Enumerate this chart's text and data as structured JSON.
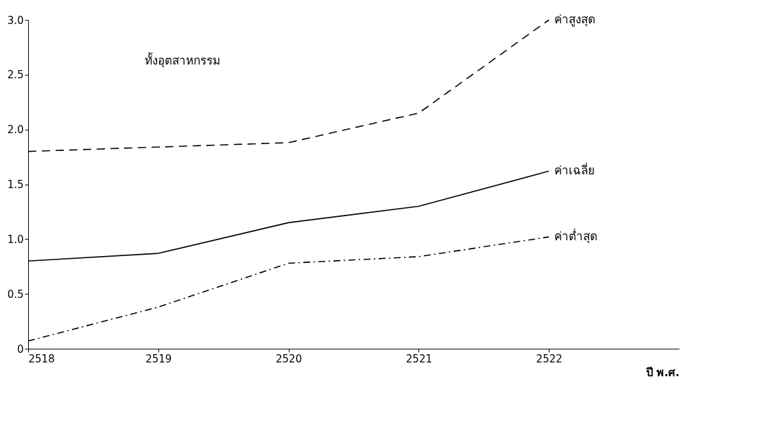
{
  "chart_data": {
    "type": "line",
    "x": [
      2518,
      2519,
      2520,
      2521,
      2522
    ],
    "series": [
      {
        "name": "ค่าสูงสุด",
        "color": "#000000",
        "line_style": "dashed",
        "values": [
          1.8,
          1.84,
          1.88,
          2.15,
          3.0
        ]
      },
      {
        "name": "ค่าเฉลี่ย",
        "color": "#000000",
        "line_style": "solid",
        "values": [
          0.8,
          0.87,
          1.15,
          1.3,
          1.62
        ]
      },
      {
        "name": "ค่าต่ำสุด",
        "color": "#000000",
        "line_style": "dashdot",
        "values": [
          0.07,
          0.38,
          0.78,
          0.84,
          1.02
        ]
      }
    ],
    "xlabel": "ปี พ.ศ.",
    "annotations": [
      "ทั้งอุตสาหกรรม"
    ],
    "xlim": [
      2518,
      2523
    ],
    "xticks": [
      2518,
      2519,
      2520,
      2521,
      2522
    ],
    "ylim": [
      0,
      3.0
    ],
    "yticks": [
      0,
      {
        "value": 0.5,
        "label": "0.5"
      },
      {
        "value": 1.0,
        "label": "1.0"
      },
      {
        "value": 1.5,
        "label": "1.5"
      },
      {
        "value": 2.0,
        "label": "2.0"
      },
      {
        "value": 2.5,
        "label": "2.5"
      },
      {
        "value": 3.0,
        "label": "3.0"
      }
    ],
    "grid": false,
    "legend": false,
    "marker": "none"
  }
}
